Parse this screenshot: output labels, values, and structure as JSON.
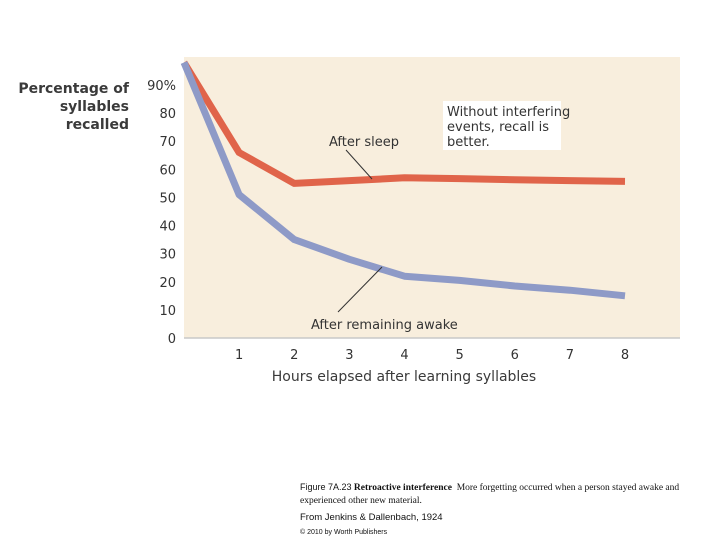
{
  "chart_data": {
    "type": "line",
    "title": "",
    "ylabel": [
      "Percentage of",
      "syllables",
      "recalled"
    ],
    "xlabel": "Hours elapsed after learning syllables",
    "x_ticks": [
      "1",
      "2",
      "3",
      "4",
      "5",
      "6",
      "7",
      "8"
    ],
    "y_ticks": [
      "90%",
      "80",
      "70",
      "60",
      "50",
      "40",
      "30",
      "20",
      "10",
      "0"
    ],
    "xlim": [
      0,
      8.5
    ],
    "ylim": [
      0,
      100
    ],
    "series": [
      {
        "name": "After sleep",
        "color": "#e0644a",
        "x": [
          0,
          1,
          2,
          3,
          4,
          5,
          6,
          7,
          8
        ],
        "y": [
          98,
          66,
          55,
          56,
          57,
          56.7,
          56.3,
          56,
          55.7
        ]
      },
      {
        "name": "After remaining awake",
        "color": "#8e9ac7",
        "x": [
          0,
          1,
          2,
          3,
          4,
          5,
          6,
          7,
          8
        ],
        "y": [
          98,
          51,
          35,
          28,
          22,
          20.5,
          18.5,
          17,
          15
        ]
      }
    ],
    "annotations": {
      "after_sleep": "After sleep",
      "after_awake": "After remaining awake",
      "callout": [
        "Without interfering",
        "events, recall is",
        "better."
      ]
    },
    "colors": {
      "plot_bg": "#f8eedd",
      "axis": "#c8c8c8"
    }
  },
  "caption": {
    "figure_label": "Figure 7A.23",
    "bold_title": "Retroactive interference",
    "text": "More forgetting occurred when a person stayed awake and experienced other new material.",
    "source": "From Jenkins & Dallenbach, 1924",
    "copyright": "© 2010 by Worth Publishers"
  }
}
